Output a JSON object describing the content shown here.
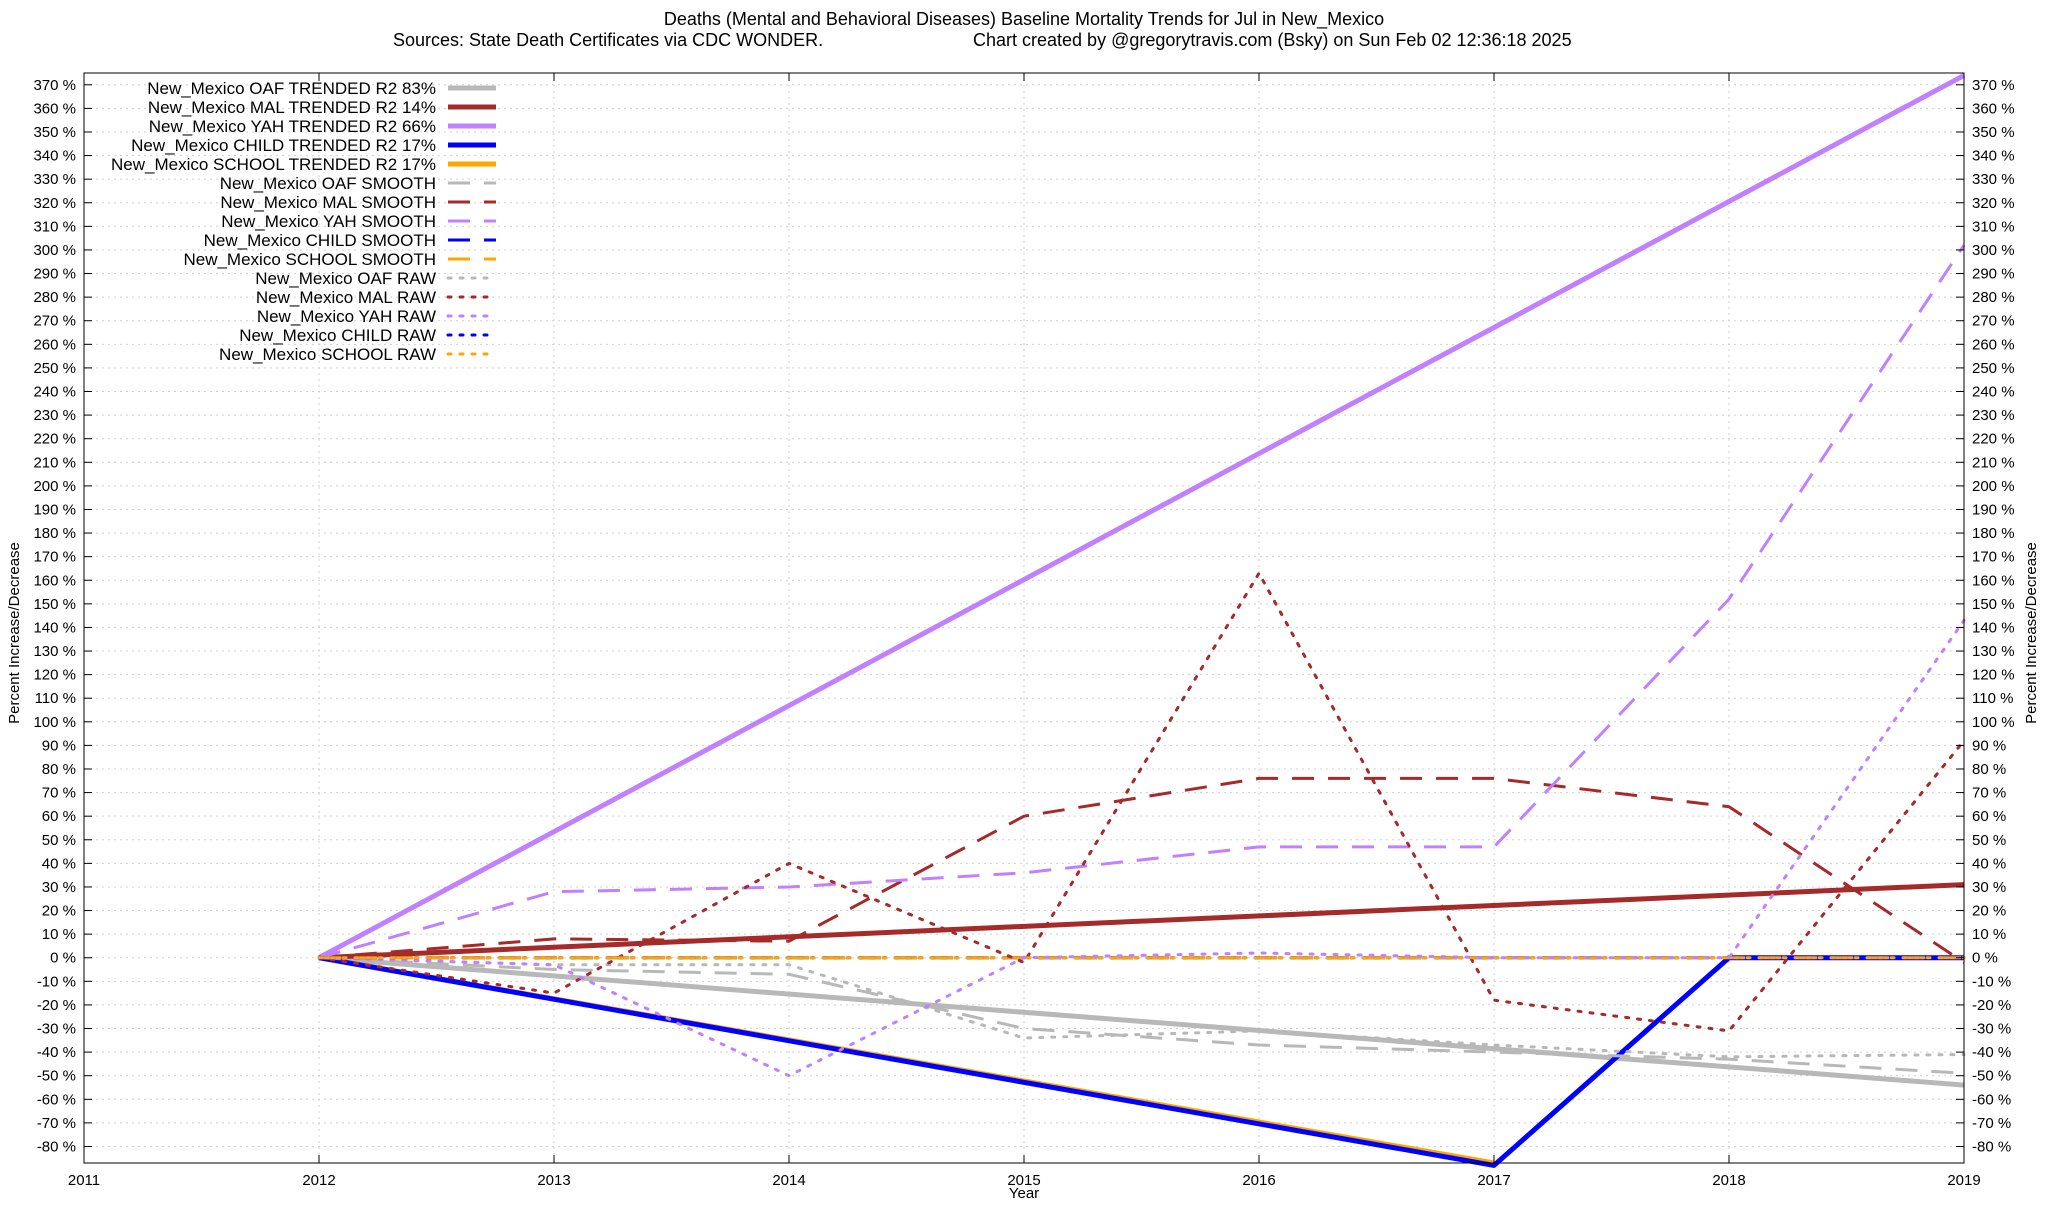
{
  "chart_data": {
    "type": "line",
    "title": "Deaths (Mental and Behavioral Diseases)  Baseline Mortality Trends for Jul in New_Mexico",
    "subtitle_left": "Sources: State Death Certificates via CDC WONDER.",
    "subtitle_right": "Chart created by @gregorytravis.com (Bsky) on Sun Feb 02 12:36:18 2025",
    "xlabel": "Year",
    "ylabel": "Percent Increase/Decrease",
    "y2label": "Percent Increase/Decrease",
    "xlim": [
      2011,
      2019
    ],
    "ylim": [
      -87,
      375
    ],
    "x_ticks": [
      2011,
      2012,
      2013,
      2014,
      2015,
      2016,
      2017,
      2018,
      2019
    ],
    "y_ticks": [
      -80,
      -70,
      -60,
      -50,
      -40,
      -30,
      -20,
      -10,
      0,
      10,
      20,
      30,
      40,
      50,
      60,
      70,
      80,
      90,
      100,
      110,
      120,
      130,
      140,
      150,
      160,
      170,
      180,
      190,
      200,
      210,
      220,
      230,
      240,
      250,
      260,
      270,
      280,
      290,
      300,
      310,
      320,
      330,
      340,
      350,
      360,
      370
    ],
    "y_tick_suffix": " %",
    "grid": true,
    "legend_position": "top-left",
    "series": [
      {
        "name": "New_Mexico OAF TRENDED R2  83%",
        "style": "solid",
        "color": "#b8b8b8",
        "x": [
          2012,
          2019
        ],
        "y": [
          0,
          -54
        ]
      },
      {
        "name": "New_Mexico MAL TRENDED R2  14%",
        "style": "solid",
        "color": "#a52a2a",
        "x": [
          2012,
          2019
        ],
        "y": [
          0,
          31
        ]
      },
      {
        "name": "New_Mexico YAH TRENDED R2  66%",
        "style": "solid",
        "color": "#c080ff",
        "x": [
          2012,
          2019
        ],
        "y": [
          0,
          374
        ]
      },
      {
        "name": "New_Mexico CHILD TRENDED R2  17%",
        "style": "solid",
        "color": "#0000ff",
        "x": [
          2012,
          2017,
          2018,
          2019
        ],
        "y": [
          0,
          -88,
          0,
          0
        ]
      },
      {
        "name": "New_Mexico SCHOOL TRENDED R2  17%",
        "style": "solid",
        "color": "#ffa500",
        "x": [
          2012,
          2017
        ],
        "y": [
          0,
          -87
        ]
      },
      {
        "name": "New_Mexico OAF SMOOTH",
        "style": "dash",
        "color": "#b8b8b8",
        "x": [
          2012,
          2013,
          2014,
          2015,
          2016,
          2017,
          2018,
          2019
        ],
        "y": [
          0,
          -5,
          -7,
          -30,
          -37,
          -40,
          -43,
          -49
        ]
      },
      {
        "name": "New_Mexico MAL SMOOTH",
        "style": "dash",
        "color": "#a52a2a",
        "x": [
          2012,
          2013,
          2014,
          2015,
          2016,
          2017,
          2018,
          2019
        ],
        "y": [
          0,
          8,
          7,
          60,
          76,
          76,
          64,
          -2
        ]
      },
      {
        "name": "New_Mexico YAH SMOOTH",
        "style": "dash",
        "color": "#c080ff",
        "x": [
          2012,
          2013,
          2014,
          2015,
          2016,
          2017,
          2018,
          2019
        ],
        "y": [
          0,
          28,
          30,
          36,
          47,
          47,
          152,
          302
        ]
      },
      {
        "name": "New_Mexico CHILD SMOOTH",
        "style": "dash",
        "color": "#0000ff",
        "x": [
          2012,
          2019
        ],
        "y": [
          0,
          0
        ]
      },
      {
        "name": "New_Mexico SCHOOL SMOOTH",
        "style": "dash",
        "color": "#ffa500",
        "x": [
          2012,
          2019
        ],
        "y": [
          0,
          0
        ]
      },
      {
        "name": "New_Mexico OAF RAW",
        "style": "dot",
        "color": "#b8b8b8",
        "x": [
          2012,
          2013,
          2014,
          2015,
          2016,
          2017,
          2018,
          2019
        ],
        "y": [
          0,
          -3,
          -3,
          -34,
          -31,
          -37,
          -42,
          -41
        ]
      },
      {
        "name": "New_Mexico MAL RAW",
        "style": "dot",
        "color": "#a52a2a",
        "x": [
          2012,
          2013,
          2014,
          2015,
          2016,
          2017,
          2018,
          2019
        ],
        "y": [
          0,
          -15,
          40,
          -2,
          163,
          -18,
          -31,
          92
        ]
      },
      {
        "name": "New_Mexico YAH RAW",
        "style": "dot",
        "color": "#c080ff",
        "x": [
          2012,
          2013,
          2014,
          2015,
          2016,
          2017,
          2018,
          2019
        ],
        "y": [
          0,
          -3,
          -50,
          0,
          2,
          0,
          0,
          143
        ]
      },
      {
        "name": "New_Mexico CHILD RAW",
        "style": "dot",
        "color": "#0000ff",
        "x": [
          2012,
          2019
        ],
        "y": [
          0,
          0
        ]
      },
      {
        "name": "New_Mexico SCHOOL RAW",
        "style": "dot",
        "color": "#ffa500",
        "x": [
          2012,
          2019
        ],
        "y": [
          0,
          0
        ]
      }
    ]
  }
}
